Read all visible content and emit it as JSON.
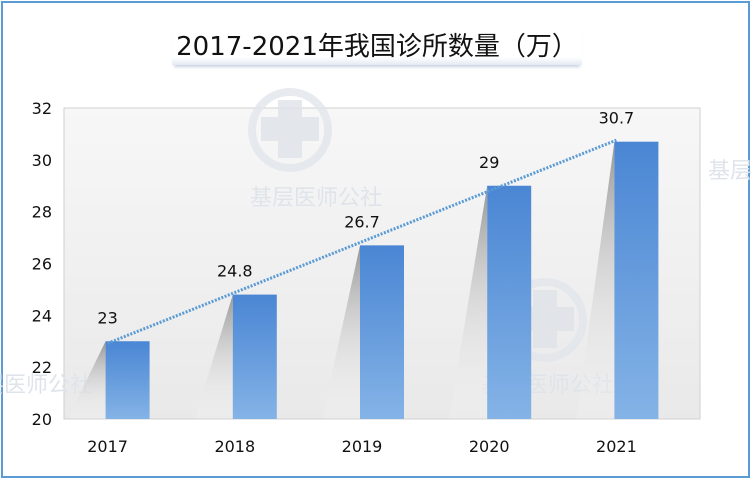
{
  "chart_data": {
    "type": "bar",
    "title": "2017-2021年我国诊所数量（万）",
    "categories": [
      "2017",
      "2018",
      "2019",
      "2020",
      "2021"
    ],
    "values": [
      23,
      24.8,
      26.7,
      29,
      30.7
    ],
    "data_labels": [
      "23",
      "24.8",
      "26.7",
      "29",
      "30.7"
    ],
    "ylim": [
      20,
      32
    ],
    "yticks": [
      "20",
      "22",
      "24",
      "26",
      "28",
      "30",
      "32"
    ],
    "trendline": "linear",
    "grid": false,
    "legend": "none",
    "colors": {
      "bar_top": "#4a86d4",
      "bar_bottom": "#84b3e6",
      "trend": "#5b9bd5",
      "frame": "#5b9bd5"
    }
  },
  "watermark": {
    "text": "基层医师公社"
  }
}
